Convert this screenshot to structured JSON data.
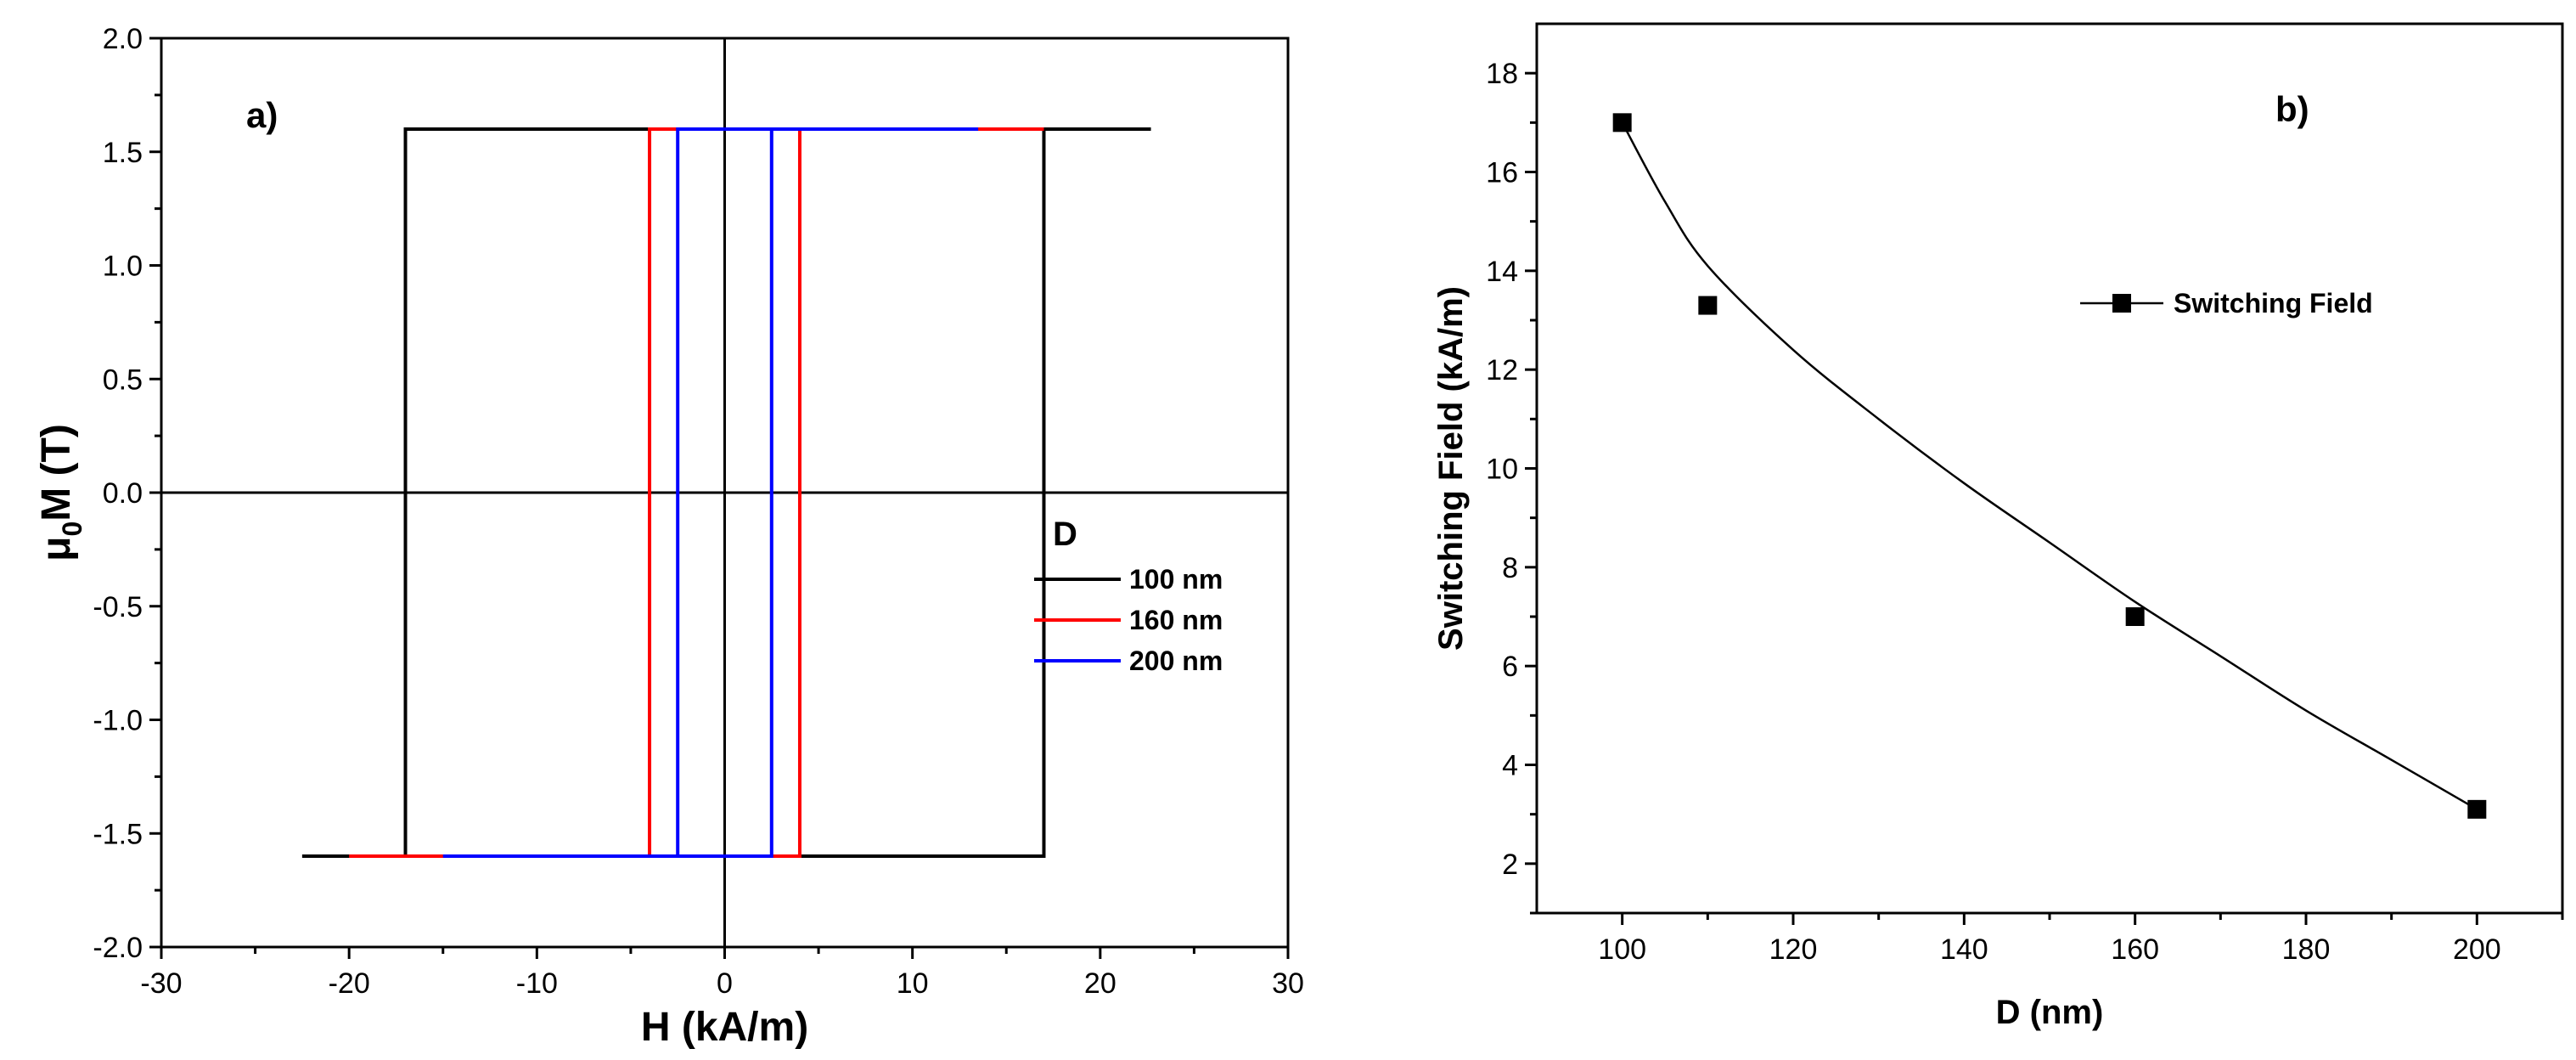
{
  "chart_data": [
    {
      "type": "line",
      "panel_label": "a)",
      "xlabel": "H (kA/m)",
      "ylabel_prefix": "μ",
      "ylabel_sub": "0",
      "ylabel_rest": "M (T)",
      "xlim": [
        -30,
        30
      ],
      "ylim": [
        -2.0,
        2.0
      ],
      "x_ticks": [
        -30,
        -20,
        -10,
        0,
        10,
        20,
        30
      ],
      "x_tick_labels": [
        "-30",
        "-20",
        "-10",
        "0",
        "10",
        "20",
        "30"
      ],
      "y_ticks": [
        -2.0,
        -1.5,
        -1.0,
        -0.5,
        0.0,
        0.5,
        1.0,
        1.5,
        2.0
      ],
      "y_tick_labels": [
        "-2.0",
        "-1.5",
        "-1.0",
        "-0.5",
        "0.0",
        "0.5",
        "1.0",
        "1.5",
        "2.0"
      ],
      "zero_lines": true,
      "legend_title": "D",
      "legend_position": "right",
      "series": [
        {
          "name": "100 nm",
          "color": "#000000",
          "points": [
            [
              -22.5,
              -1.6
            ],
            [
              17,
              -1.6
            ],
            [
              17,
              1.6
            ],
            [
              22.7,
              1.6
            ],
            [
              -17,
              1.6
            ],
            [
              -17,
              -1.6
            ]
          ]
        },
        {
          "name": "160 nm",
          "color": "#ff0000",
          "points": [
            [
              -20,
              -1.6
            ],
            [
              4,
              -1.6
            ],
            [
              4,
              1.6
            ],
            [
              17,
              1.6
            ],
            [
              -4,
              1.6
            ],
            [
              -4,
              -1.6
            ]
          ]
        },
        {
          "name": "200 nm",
          "color": "#0000ff",
          "points": [
            [
              -15,
              -1.6
            ],
            [
              2.5,
              -1.6
            ],
            [
              2.5,
              1.6
            ],
            [
              13.5,
              1.6
            ],
            [
              -2.5,
              1.6
            ],
            [
              -2.5,
              -1.6
            ]
          ]
        }
      ]
    },
    {
      "type": "scatter",
      "panel_label": "b)",
      "xlabel": "D (nm)",
      "ylabel": "Switching Field (kA/m)",
      "xlim": [
        90,
        210
      ],
      "ylim": [
        1,
        19
      ],
      "x_ticks": [
        100,
        120,
        140,
        160,
        180,
        200
      ],
      "x_tick_labels": [
        "100",
        "120",
        "140",
        "160",
        "180",
        "200"
      ],
      "y_ticks": [
        2,
        4,
        6,
        8,
        10,
        12,
        14,
        16,
        18
      ],
      "y_tick_labels": [
        "2",
        "4",
        "6",
        "8",
        "10",
        "12",
        "14",
        "16",
        "18"
      ],
      "legend_position": "top-right",
      "series": [
        {
          "name": "Switching Field",
          "color": "#000000",
          "x": [
            100,
            110,
            160,
            200
          ],
          "y": [
            17.0,
            13.3,
            7.0,
            3.1
          ],
          "fit_curve": [
            [
              100,
              17.0
            ],
            [
              105,
              15.4
            ],
            [
              110,
              14.1
            ],
            [
              120,
              12.4
            ],
            [
              130,
              11.0
            ],
            [
              140,
              9.7
            ],
            [
              150,
              8.5
            ],
            [
              160,
              7.3
            ],
            [
              170,
              6.2
            ],
            [
              180,
              5.1
            ],
            [
              190,
              4.1
            ],
            [
              200,
              3.1
            ]
          ]
        }
      ]
    }
  ]
}
